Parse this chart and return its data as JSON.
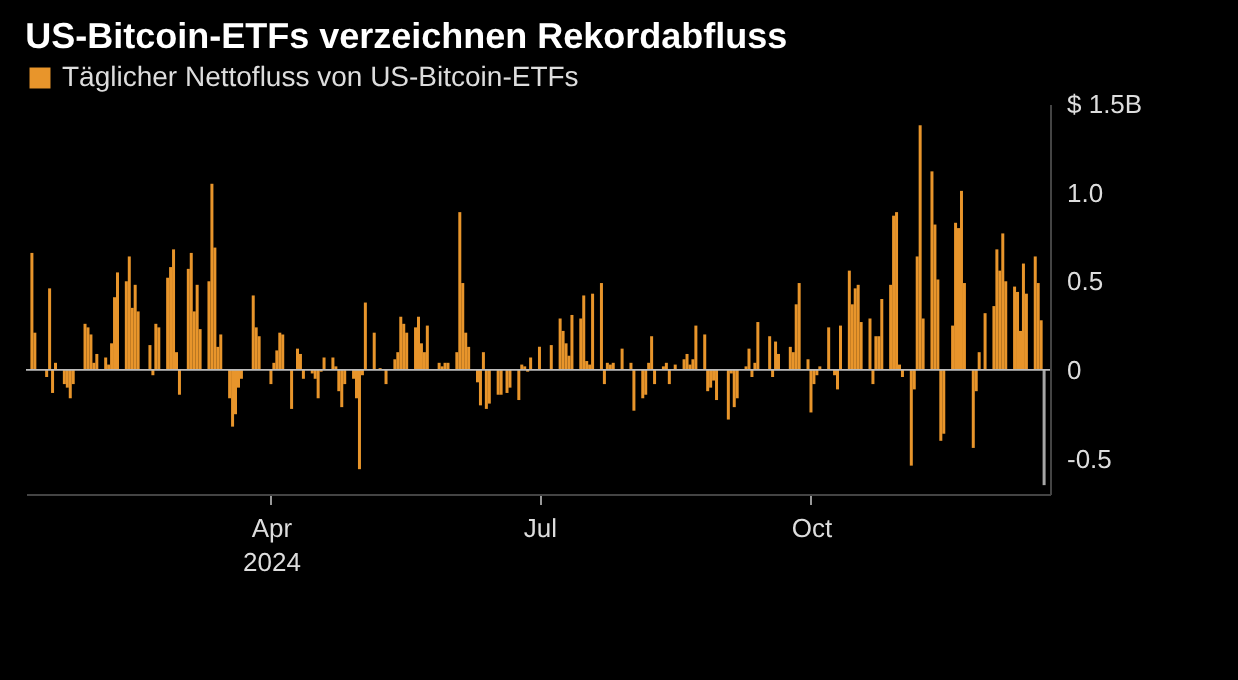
{
  "chart_data": {
    "type": "bar",
    "title": "US-Bitcoin-ETFs verzeichnen Rekordabfluss",
    "legend": "top left",
    "x": [
      "2024-01-11",
      "2024-01-12",
      "2024-01-16",
      "2024-01-17",
      "2024-01-18",
      "2024-01-19",
      "2024-01-22",
      "2024-01-23",
      "2024-01-24",
      "2024-01-25",
      "2024-01-26",
      "2024-01-29",
      "2024-01-30",
      "2024-01-31",
      "2024-02-01",
      "2024-02-02",
      "2024-02-05",
      "2024-02-06",
      "2024-02-07",
      "2024-02-08",
      "2024-02-09",
      "2024-02-12",
      "2024-02-13",
      "2024-02-14",
      "2024-02-15",
      "2024-02-16",
      "2024-02-20",
      "2024-02-21",
      "2024-02-22",
      "2024-02-23",
      "2024-02-26",
      "2024-02-27",
      "2024-02-28",
      "2024-02-29",
      "2024-03-01",
      "2024-03-04",
      "2024-03-05",
      "2024-03-06",
      "2024-03-07",
      "2024-03-08",
      "2024-03-11",
      "2024-03-12",
      "2024-03-13",
      "2024-03-14",
      "2024-03-15",
      "2024-03-18",
      "2024-03-19",
      "2024-03-20",
      "2024-03-21",
      "2024-03-22",
      "2024-03-25",
      "2024-03-26",
      "2024-03-27",
      "2024-03-28",
      "2024-04-01",
      "2024-04-02",
      "2024-04-03",
      "2024-04-04",
      "2024-04-05",
      "2024-04-08",
      "2024-04-09",
      "2024-04-10",
      "2024-04-11",
      "2024-04-12",
      "2024-04-15",
      "2024-04-16",
      "2024-04-17",
      "2024-04-18",
      "2024-04-19",
      "2024-04-22",
      "2024-04-23",
      "2024-04-24",
      "2024-04-25",
      "2024-04-26",
      "2024-04-29",
      "2024-04-30",
      "2024-05-01",
      "2024-05-02",
      "2024-05-03",
      "2024-05-06",
      "2024-05-07",
      "2024-05-08",
      "2024-05-09",
      "2024-05-10",
      "2024-05-13",
      "2024-05-14",
      "2024-05-15",
      "2024-05-16",
      "2024-05-17",
      "2024-05-20",
      "2024-05-21",
      "2024-05-22",
      "2024-05-23",
      "2024-05-24",
      "2024-05-28",
      "2024-05-29",
      "2024-05-30",
      "2024-05-31",
      "2024-06-03",
      "2024-06-04",
      "2024-06-05",
      "2024-06-06",
      "2024-06-07",
      "2024-06-10",
      "2024-06-11",
      "2024-06-12",
      "2024-06-13",
      "2024-06-14",
      "2024-06-17",
      "2024-06-18",
      "2024-06-20",
      "2024-06-21",
      "2024-06-24",
      "2024-06-25",
      "2024-06-26",
      "2024-06-27",
      "2024-06-28",
      "2024-07-01",
      "2024-07-02",
      "2024-07-03",
      "2024-07-05",
      "2024-07-08",
      "2024-07-09",
      "2024-07-10",
      "2024-07-11",
      "2024-07-12",
      "2024-07-15",
      "2024-07-16",
      "2024-07-17",
      "2024-07-18",
      "2024-07-19",
      "2024-07-22",
      "2024-07-23",
      "2024-07-24",
      "2024-07-25",
      "2024-07-26",
      "2024-07-29",
      "2024-07-30",
      "2024-07-31",
      "2024-08-01",
      "2024-08-02",
      "2024-08-05",
      "2024-08-06",
      "2024-08-07",
      "2024-08-08",
      "2024-08-09",
      "2024-08-12",
      "2024-08-13",
      "2024-08-14",
      "2024-08-15",
      "2024-08-16",
      "2024-08-19",
      "2024-08-20",
      "2024-08-21",
      "2024-08-22",
      "2024-08-23",
      "2024-08-26",
      "2024-08-27",
      "2024-08-28",
      "2024-08-29",
      "2024-08-30",
      "2024-09-03",
      "2024-09-04",
      "2024-09-05",
      "2024-09-06",
      "2024-09-09",
      "2024-09-10",
      "2024-09-11",
      "2024-09-12",
      "2024-09-13",
      "2024-09-16",
      "2024-09-17",
      "2024-09-18",
      "2024-09-19",
      "2024-09-20",
      "2024-09-23",
      "2024-09-24",
      "2024-09-25",
      "2024-09-26",
      "2024-09-27",
      "2024-09-30",
      "2024-10-01",
      "2024-10-02",
      "2024-10-03",
      "2024-10-04",
      "2024-10-07",
      "2024-10-08",
      "2024-10-09",
      "2024-10-10",
      "2024-10-11",
      "2024-10-14",
      "2024-10-15",
      "2024-10-16",
      "2024-10-17",
      "2024-10-18",
      "2024-10-21",
      "2024-10-22",
      "2024-10-23",
      "2024-10-24",
      "2024-10-25",
      "2024-10-28",
      "2024-10-29",
      "2024-10-30",
      "2024-10-31",
      "2024-11-01",
      "2024-11-04",
      "2024-11-05",
      "2024-11-06",
      "2024-11-07",
      "2024-11-08",
      "2024-11-11",
      "2024-11-12",
      "2024-11-13",
      "2024-11-14",
      "2024-11-15",
      "2024-11-18",
      "2024-11-19",
      "2024-11-20",
      "2024-11-21",
      "2024-11-22",
      "2024-11-25",
      "2024-11-26",
      "2024-11-27",
      "2024-11-29",
      "2024-12-02",
      "2024-12-03",
      "2024-12-04",
      "2024-12-05",
      "2024-12-06",
      "2024-12-09",
      "2024-12-10",
      "2024-12-11",
      "2024-12-12",
      "2024-12-13",
      "2024-12-16",
      "2024-12-17",
      "2024-12-18",
      "2024-12-19"
    ],
    "series": [
      {
        "name": "Täglicher Nettofluss von US-Bitcoin-ETFs",
        "color": "#e8952b",
        "values": [
          0.66,
          0.21,
          -0.04,
          0.46,
          -0.13,
          0.04,
          -0.08,
          -0.1,
          -0.16,
          -0.08,
          null,
          0.26,
          0.24,
          0.2,
          0.04,
          0.09,
          0.07,
          0.03,
          0.15,
          0.41,
          0.55,
          0.5,
          0.64,
          0.35,
          0.48,
          0.33,
          0.14,
          -0.03,
          0.26,
          0.24,
          0.52,
          0.58,
          0.68,
          0.1,
          -0.14,
          0.57,
          0.66,
          0.33,
          0.48,
          0.23,
          0.5,
          1.05,
          0.69,
          0.13,
          0.2,
          -0.16,
          -0.32,
          -0.25,
          -0.1,
          -0.05,
          null,
          0.42,
          0.24,
          0.19,
          -0.08,
          0.04,
          0.11,
          0.21,
          0.2,
          -0.22,
          null,
          0.12,
          0.09,
          -0.05,
          -0.02,
          -0.05,
          -0.16,
          -0.01,
          0.07,
          0.07,
          0.02,
          -0.12,
          -0.21,
          -0.08,
          -0.05,
          -0.16,
          -0.56,
          -0.03,
          0.38,
          0.21,
          0,
          0.01,
          0,
          -0.08,
          0.06,
          0.1,
          0.3,
          0.26,
          0.21,
          0.24,
          0.3,
          0.15,
          0.1,
          0.25,
          0.04,
          0.02,
          0.04,
          0.04,
          0.1,
          0.89,
          0.49,
          0.21,
          0.13,
          -0.07,
          -0.2,
          0.1,
          -0.22,
          -0.19,
          -0.14,
          -0.14,
          -0.13,
          -0.1,
          -0.17,
          0.03,
          0.02,
          -0.01,
          0.07,
          0.13,
          0,
          0,
          0.14,
          0.29,
          0.22,
          0.15,
          0.08,
          0.31,
          0.29,
          0.42,
          0.05,
          0.03,
          0.43,
          0.49,
          -0.08,
          0.04,
          0.03,
          0.04,
          0.12,
          0,
          0,
          0.04,
          -0.23,
          -0.16,
          -0.14,
          0.04,
          0.19,
          -0.08,
          0.02,
          0.04,
          -0.08,
          null,
          0.03,
          0.06,
          0.09,
          0.03,
          0.06,
          0.25,
          0.2,
          -0.12,
          -0.1,
          -0.06,
          -0.17,
          -0.28,
          -0.02,
          -0.21,
          -0.16,
          0.02,
          0.12,
          -0.04,
          0.04,
          0.27,
          0,
          0.19,
          -0.04,
          0.16,
          0.09,
          0,
          0.13,
          0.1,
          0.37,
          0.49,
          0.06,
          -0.24,
          -0.08,
          -0.03,
          0.02,
          0.24,
          0,
          -0.03,
          -0.11,
          0.25,
          0.56,
          0.37,
          0.46,
          0.48,
          0.27,
          0.29,
          -0.08,
          0.19,
          0.19,
          0.4,
          0.48,
          0.87,
          0.89,
          0.03,
          -0.04,
          -0.54,
          -0.11,
          0.64,
          1.38,
          0.29,
          1.12,
          0.82,
          0.51,
          -0.4,
          -0.36,
          0.25,
          0.83,
          0.8,
          1.01,
          0.49,
          -0.44,
          -0.12,
          0.1,
          0.32,
          0.36,
          0.68,
          0.56,
          0.77,
          0.5,
          0.47,
          0.44,
          0.22,
          0.6,
          0.43,
          0.64,
          0.49,
          0.28,
          -0.65
        ],
        "colors": [
          "#e8952b",
          "#e8952b",
          "#e8952b",
          "#e8952b",
          "#e8952b",
          "#e8952b",
          "#e8952b",
          "#e8952b",
          "#e8952b",
          "#e8952b",
          "#e8952b",
          "#e8952b",
          "#e8952b",
          "#e8952b",
          "#e8952b",
          "#e8952b",
          "#e8952b",
          "#e8952b",
          "#e8952b",
          "#e8952b",
          "#e8952b",
          "#e8952b",
          "#e8952b",
          "#e8952b",
          "#e8952b",
          "#e8952b",
          "#e8952b",
          "#e8952b",
          "#e8952b",
          "#e8952b",
          "#e8952b",
          "#e8952b",
          "#e8952b",
          "#e8952b",
          "#e8952b",
          "#e8952b",
          "#e8952b",
          "#e8952b",
          "#e8952b",
          "#e8952b",
          "#e8952b",
          "#e8952b",
          "#e8952b",
          "#e8952b",
          "#e8952b",
          "#e8952b",
          "#e8952b",
          "#e8952b",
          "#e8952b",
          "#e8952b",
          "#e8952b",
          "#e8952b",
          "#e8952b",
          "#e8952b",
          "#e8952b",
          "#e8952b",
          "#e8952b",
          "#e8952b",
          "#e8952b",
          "#e8952b",
          "#e8952b",
          "#e8952b",
          "#e8952b",
          "#e8952b",
          "#e8952b",
          "#e8952b",
          "#e8952b",
          "#e8952b",
          "#e8952b",
          "#e8952b",
          "#e8952b",
          "#e8952b",
          "#e8952b",
          "#e8952b",
          "#e8952b",
          "#e8952b",
          "#e8952b",
          "#e8952b",
          "#e8952b",
          "#e8952b",
          "#e8952b",
          "#e8952b",
          "#e8952b",
          "#e8952b",
          "#e8952b",
          "#e8952b",
          "#e8952b",
          "#e8952b",
          "#e8952b",
          "#e8952b",
          "#e8952b",
          "#e8952b",
          "#e8952b",
          "#e8952b",
          "#e8952b",
          "#e8952b",
          "#e8952b",
          "#e8952b",
          "#e8952b",
          "#e8952b",
          "#e8952b",
          "#e8952b",
          "#e8952b",
          "#e8952b",
          "#e8952b",
          "#e8952b",
          "#e8952b",
          "#e8952b",
          "#e8952b",
          "#e8952b",
          "#e8952b",
          "#e8952b",
          "#e8952b",
          "#e8952b",
          "#e8952b",
          "#e8952b",
          "#e8952b",
          "#e8952b",
          "#e8952b",
          "#e8952b",
          "#e8952b",
          "#e8952b",
          "#e8952b",
          "#e8952b",
          "#e8952b",
          "#e8952b",
          "#e8952b",
          "#e8952b",
          "#e8952b",
          "#e8952b",
          "#e8952b",
          "#e8952b",
          "#e8952b",
          "#e8952b",
          "#e8952b",
          "#e8952b",
          "#e8952b",
          "#e8952b",
          "#e8952b",
          "#e8952b",
          "#e8952b",
          "#e8952b",
          "#e8952b",
          "#e8952b",
          "#e8952b",
          "#e8952b",
          "#e8952b",
          "#e8952b",
          "#e8952b",
          "#e8952b",
          "#e8952b",
          "#e8952b",
          "#e8952b",
          "#e8952b",
          "#e8952b",
          "#e8952b",
          "#e8952b",
          "#e8952b",
          "#e8952b",
          "#e8952b",
          "#e8952b",
          "#e8952b",
          "#e8952b",
          "#e8952b",
          "#e8952b",
          "#e8952b",
          "#e8952b",
          "#e8952b",
          "#e8952b",
          "#e8952b",
          "#e8952b",
          "#e8952b",
          "#e8952b",
          "#e8952b",
          "#e8952b",
          "#e8952b",
          "#e8952b",
          "#e8952b",
          "#e8952b",
          "#e8952b",
          "#e8952b",
          "#e8952b",
          "#e8952b",
          "#e8952b",
          "#e8952b",
          "#e8952b",
          "#e8952b",
          "#e8952b",
          "#e8952b",
          "#e8952b",
          "#e8952b",
          "#e8952b",
          "#e8952b",
          "#e8952b",
          "#e8952b",
          "#e8952b",
          "#e8952b",
          "#e8952b",
          "#e8952b",
          "#e8952b",
          "#e8952b",
          "#e8952b",
          "#e8952b",
          "#e8952b",
          "#e8952b",
          "#e8952b",
          "#e8952b",
          "#e8952b",
          "#e8952b",
          "#e8952b",
          "#e8952b",
          "#e8952b",
          "#e8952b",
          "#e8952b",
          "#e8952b",
          "#e8952b",
          "#e8952b",
          "#e8952b",
          "#e8952b",
          "#e8952b",
          "#e8952b",
          "#e8952b",
          "#e8952b",
          "#e8952b",
          "#e8952b",
          "#e8952b",
          "#e8952b",
          "#e8952b",
          "#e8952b",
          "#e8952b",
          "#e8952b",
          "#e8952b",
          "#e8952b",
          "#e8952b",
          "#e8952b",
          "#e8952b",
          "#e8952b",
          "#a6a6a6"
        ]
      }
    ],
    "xlim": [
      "2024-01-09",
      "2024-12-21"
    ],
    "xticks": [
      {
        "value": "2024-04-01",
        "label": "Apr\n2024"
      },
      {
        "value": "2024-07-01",
        "label": "Jul"
      },
      {
        "value": "2024-10-01",
        "label": "Oct"
      }
    ],
    "ylim": [
      -0.7,
      1.5
    ],
    "yticks": [
      -0.5,
      0,
      0.5,
      {
        "value": 1,
        "label": "1.0"
      },
      {
        "value": 1.5,
        "label": "$ 1.5B"
      }
    ]
  }
}
